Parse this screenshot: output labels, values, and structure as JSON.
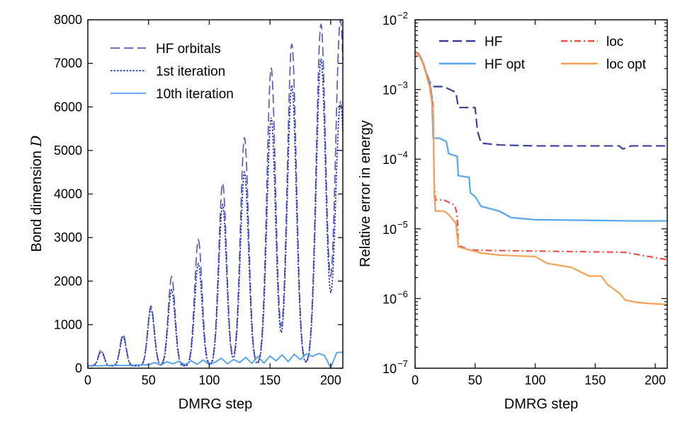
{
  "chart_data": [
    {
      "type": "line",
      "xlabel": "DMRG step",
      "ylabel": "Bond dimension ",
      "ylabel_var": "D",
      "xlim": [
        0,
        210
      ],
      "ylim": [
        0,
        8000
      ],
      "xticks": [
        "0",
        "50",
        "100",
        "150",
        "200"
      ],
      "yticks": [
        "0",
        "1000",
        "2000",
        "3000",
        "4000",
        "5000",
        "6000",
        "7000",
        "8000"
      ],
      "legend_position": "top-left",
      "series": [
        {
          "name": "HF orbitals",
          "color": "#5a5fbf",
          "style": "dashed",
          "peaks": [
            [
              11,
              420
            ],
            [
              29,
              780
            ],
            [
              52,
              1430
            ],
            [
              69,
              2100
            ],
            [
              91,
              2950
            ],
            [
              111,
              4250
            ],
            [
              129,
              5300
            ],
            [
              151,
              6900
            ],
            [
              168,
              7450
            ],
            [
              192,
              7900
            ],
            [
              208,
              8000
            ]
          ],
          "base": 60
        },
        {
          "name": "1st iteration",
          "color": "#2233cc",
          "style": "dotted",
          "peaks": [
            [
              11,
              380
            ],
            [
              29,
              720
            ],
            [
              52,
              1360
            ],
            [
              69,
              1800
            ],
            [
              91,
              2400
            ],
            [
              111,
              3750
            ],
            [
              129,
              4500
            ],
            [
              151,
              5750
            ],
            [
              168,
              6500
            ],
            [
              192,
              7100
            ],
            [
              208,
              6100
            ]
          ],
          "base": 50
        },
        {
          "name": "10th iteration",
          "color": "#4d9ef0",
          "style": "solid",
          "x": [
            0,
            10,
            20,
            30,
            40,
            50,
            55,
            60,
            65,
            70,
            75,
            80,
            85,
            90,
            95,
            100,
            105,
            110,
            115,
            120,
            125,
            130,
            135,
            140,
            145,
            150,
            155,
            160,
            165,
            170,
            175,
            180,
            185,
            190,
            195,
            200,
            205,
            210
          ],
          "y": [
            60,
            55,
            70,
            60,
            75,
            80,
            130,
            70,
            150,
            100,
            160,
            80,
            170,
            90,
            190,
            80,
            140,
            230,
            100,
            200,
            130,
            250,
            110,
            270,
            120,
            280,
            170,
            310,
            150,
            320,
            200,
            330,
            270,
            340,
            290,
            10,
            360,
            370
          ]
        }
      ]
    },
    {
      "type": "line",
      "xlabel": "DMRG step",
      "ylabel": "Relative error in energy",
      "yscale": "log",
      "xlim": [
        0,
        210
      ],
      "ylim": [
        1e-07,
        0.01
      ],
      "xticks": [
        "0",
        "50",
        "100",
        "150",
        "200"
      ],
      "yticks": [
        {
          "base": "10",
          "exp": "−2"
        },
        {
          "base": "10",
          "exp": "−3"
        },
        {
          "base": "10",
          "exp": "−4"
        },
        {
          "base": "10",
          "exp": "−5"
        },
        {
          "base": "10",
          "exp": "−6"
        },
        {
          "base": "10",
          "exp": "−7"
        }
      ],
      "legend_position": "top-right",
      "series": [
        {
          "name": "HF",
          "color": "#3a3f9a",
          "style": "dashed",
          "x": [
            0,
            3,
            6,
            9,
            12,
            15,
            18,
            24,
            30,
            34,
            36,
            50,
            52,
            55,
            70,
            100,
            130,
            170,
            173,
            180,
            210
          ],
          "y": [
            0.0035,
            0.0032,
            0.0026,
            0.0018,
            0.0013,
            0.0011,
            0.0011,
            0.0011,
            0.00098,
            0.00091,
            0.00055,
            0.00055,
            0.00025,
            0.00017,
            0.00016,
            0.000155,
            0.000155,
            0.000155,
            0.00014,
            0.000155,
            0.000155
          ]
        },
        {
          "name": "HF opt",
          "color": "#55a6f2",
          "style": "solid",
          "x": [
            0,
            3,
            6,
            9,
            12,
            14,
            15,
            20,
            26,
            28,
            35,
            36,
            45,
            46,
            50,
            53,
            55,
            60,
            70,
            80,
            100,
            140,
            180,
            210
          ],
          "y": [
            0.0035,
            0.0032,
            0.0026,
            0.0018,
            0.0013,
            0.0008,
            0.0002,
            0.0002,
            0.00018,
            0.00012,
            0.00011,
            5.8e-05,
            5.5e-05,
            3.3e-05,
            2.9e-05,
            2.4e-05,
            2.1e-05,
            2e-05,
            1.8e-05,
            1.45e-05,
            1.35e-05,
            1.33e-05,
            1.3e-05,
            1.3e-05
          ]
        },
        {
          "name": "loc",
          "color": "#ef5048",
          "style": "dashdot",
          "x": [
            0,
            3,
            6,
            9,
            12,
            15,
            16,
            17,
            24,
            28,
            33,
            35,
            36,
            45,
            60,
            100,
            140,
            175,
            195,
            210
          ],
          "y": [
            0.0035,
            0.0032,
            0.0026,
            0.0018,
            0.0012,
            0.0006,
            4e-05,
            2.6e-05,
            2.6e-05,
            2.4e-05,
            2.2e-05,
            1.6e-05,
            5.8e-06,
            5e-06,
            4.9e-06,
            4.8e-06,
            4.7e-06,
            4.6e-06,
            4e-06,
            3.6e-06
          ]
        },
        {
          "name": "loc opt",
          "color": "#f5a055",
          "style": "solid",
          "x": [
            0,
            3,
            6,
            9,
            12,
            15,
            16,
            17,
            24,
            28,
            34,
            36,
            55,
            70,
            100,
            110,
            130,
            145,
            155,
            160,
            170,
            175,
            185,
            195,
            210
          ],
          "y": [
            0.0034,
            0.0031,
            0.0025,
            0.0017,
            0.0011,
            0.0005,
            3e-05,
            1.8e-05,
            1.8e-05,
            1.6e-05,
            1.2e-05,
            5.5e-06,
            4.5e-06,
            4.2e-06,
            4e-06,
            3.2e-06,
            2.8e-06,
            2.1e-06,
            2.1e-06,
            1.6e-06,
            1.2e-06,
            9.5e-07,
            8.8e-07,
            8.5e-07,
            8.2e-07
          ]
        }
      ]
    }
  ]
}
